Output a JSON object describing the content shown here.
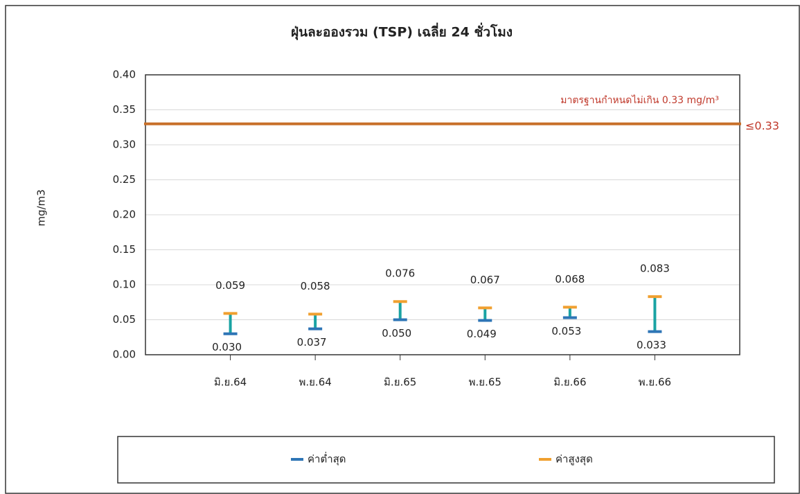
{
  "chart_data": {
    "type": "range",
    "title": "ฝุ่นละอองรวม (TSP) เฉลี่ย 24 ชั่วโมง",
    "y_label": "mg/m3",
    "categories": [
      "มิ.ย.64",
      "พ.ย.64",
      "มิ.ย.65",
      "พ.ย.65",
      "มิ.ย.66",
      "พ.ย.66"
    ],
    "series": [
      {
        "name": "ค่าต่ำสุด",
        "color": "#2e75b6",
        "values": [
          0.03,
          0.037,
          0.05,
          0.049,
          0.053,
          0.033
        ],
        "value_labels": [
          "0.030",
          "0.037",
          "0.050",
          "0.049",
          "0.053",
          "0.033"
        ]
      },
      {
        "name": "ค่าสูงสุด",
        "color": "#f0a030",
        "values": [
          0.059,
          0.058,
          0.076,
          0.067,
          0.068,
          0.083
        ],
        "value_labels": [
          "0.059",
          "0.058",
          "0.076",
          "0.067",
          "0.068",
          "0.083"
        ]
      }
    ],
    "range_color": "#1aa3a3",
    "standard": {
      "value": 0.33,
      "label": "≤0.33",
      "annotation": "มาตรฐานกำหนดไม่เกิน 0.33 mg/m³",
      "color": "#c8702a"
    },
    "ylim": [
      0,
      0.4
    ],
    "yticks": [
      {
        "value": 0,
        "label": "0.00"
      },
      {
        "value": 0.05,
        "label": "0.05"
      },
      {
        "value": 0.1,
        "label": "0.10"
      },
      {
        "value": 0.15,
        "label": "0.15"
      },
      {
        "value": 0.2,
        "label": "0.20"
      },
      {
        "value": 0.25,
        "label": "0.25"
      },
      {
        "value": 0.3,
        "label": "0.30"
      },
      {
        "value": 0.35,
        "label": "0.35"
      },
      {
        "value": 0.4,
        "label": "0.40"
      }
    ],
    "grid": true,
    "legend": "bottom"
  }
}
